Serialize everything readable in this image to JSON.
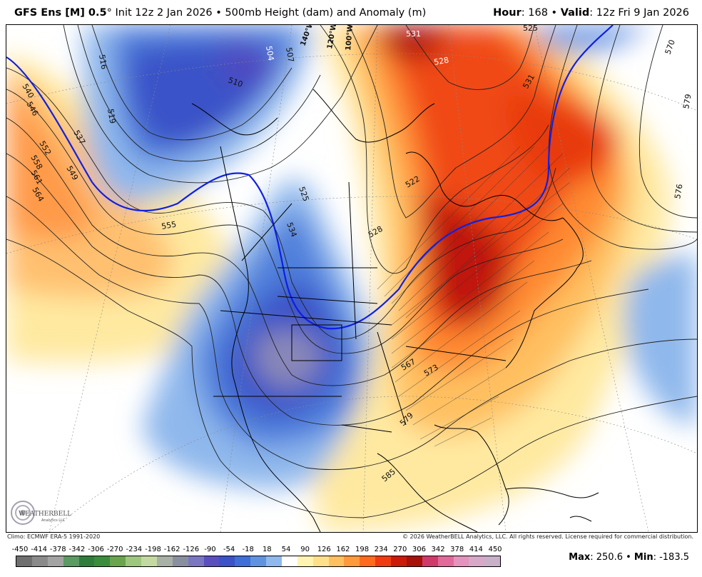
{
  "header": {
    "model": "GFS Ens [M] 0.5",
    "degree": "°",
    "init": " Init 12z 2 Jan 2026 • 500mb Height (dam) and Anomaly (m)",
    "hour_label": "Hour",
    "hour_value": ": 168 • ",
    "valid_label": "Valid",
    "valid_value": ": 12z Fri 9 Jan 2026"
  },
  "footer": {
    "climo": "Climo: ECMWF ERA-5 1991-2020",
    "copyright": "© 2026 WeatherBELL Analytics, LLC. All rights reserved. License required for commercial distribution."
  },
  "logo": {
    "text": "WEATHERBELL",
    "sub": "Analytics LLC"
  },
  "stats": {
    "max_label": "Max",
    "max_value": ": 250.6 • ",
    "min_label": "Min",
    "min_value": ": -183.5"
  },
  "scale": {
    "labels": [
      "-450",
      "-414",
      "-378",
      "-342",
      "-306",
      "-270",
      "-234",
      "-198",
      "-162",
      "-126",
      "-90",
      "-54",
      "-18",
      "18",
      "54",
      "90",
      "126",
      "162",
      "198",
      "234",
      "270",
      "306",
      "342",
      "378",
      "414",
      "450"
    ],
    "colors": [
      "#6f6f6f",
      "#8a8a8a",
      "#a3a3a3",
      "#5a9a63",
      "#2f7d3c",
      "#3b8d3c",
      "#6aa54d",
      "#9ec77e",
      "#c4d9a2",
      "#a9b0a6",
      "#8a8fa0",
      "#7b76c2",
      "#5b4fc0",
      "#3b52c8",
      "#3f6fd6",
      "#5f93e0",
      "#8fb8ec",
      "#ffffff",
      "#fff4b0",
      "#ffe08a",
      "#ffc060",
      "#ff9a3c",
      "#ff6a1e",
      "#f03a12",
      "#cc1a0a",
      "#a8100a",
      "#d03a6a",
      "#e06a9a",
      "#e494bc",
      "#d8a8c8",
      "#c8b0c8"
    ]
  },
  "contours": {
    "west": [
      "540",
      "546",
      "552",
      "558",
      "561",
      "564",
      "537",
      "549",
      "555"
    ],
    "pacific": [
      "516",
      "519",
      "504",
      "507",
      "510"
    ],
    "rockies": [
      "525",
      "534"
    ],
    "east": [
      "531",
      "528",
      "522",
      "528",
      "525",
      "531",
      "570",
      "579",
      "576"
    ],
    "south": [
      "567",
      "573",
      "579",
      "585"
    ]
  },
  "longitudes": [
    "140°W",
    "120°W",
    "100°W"
  ]
}
